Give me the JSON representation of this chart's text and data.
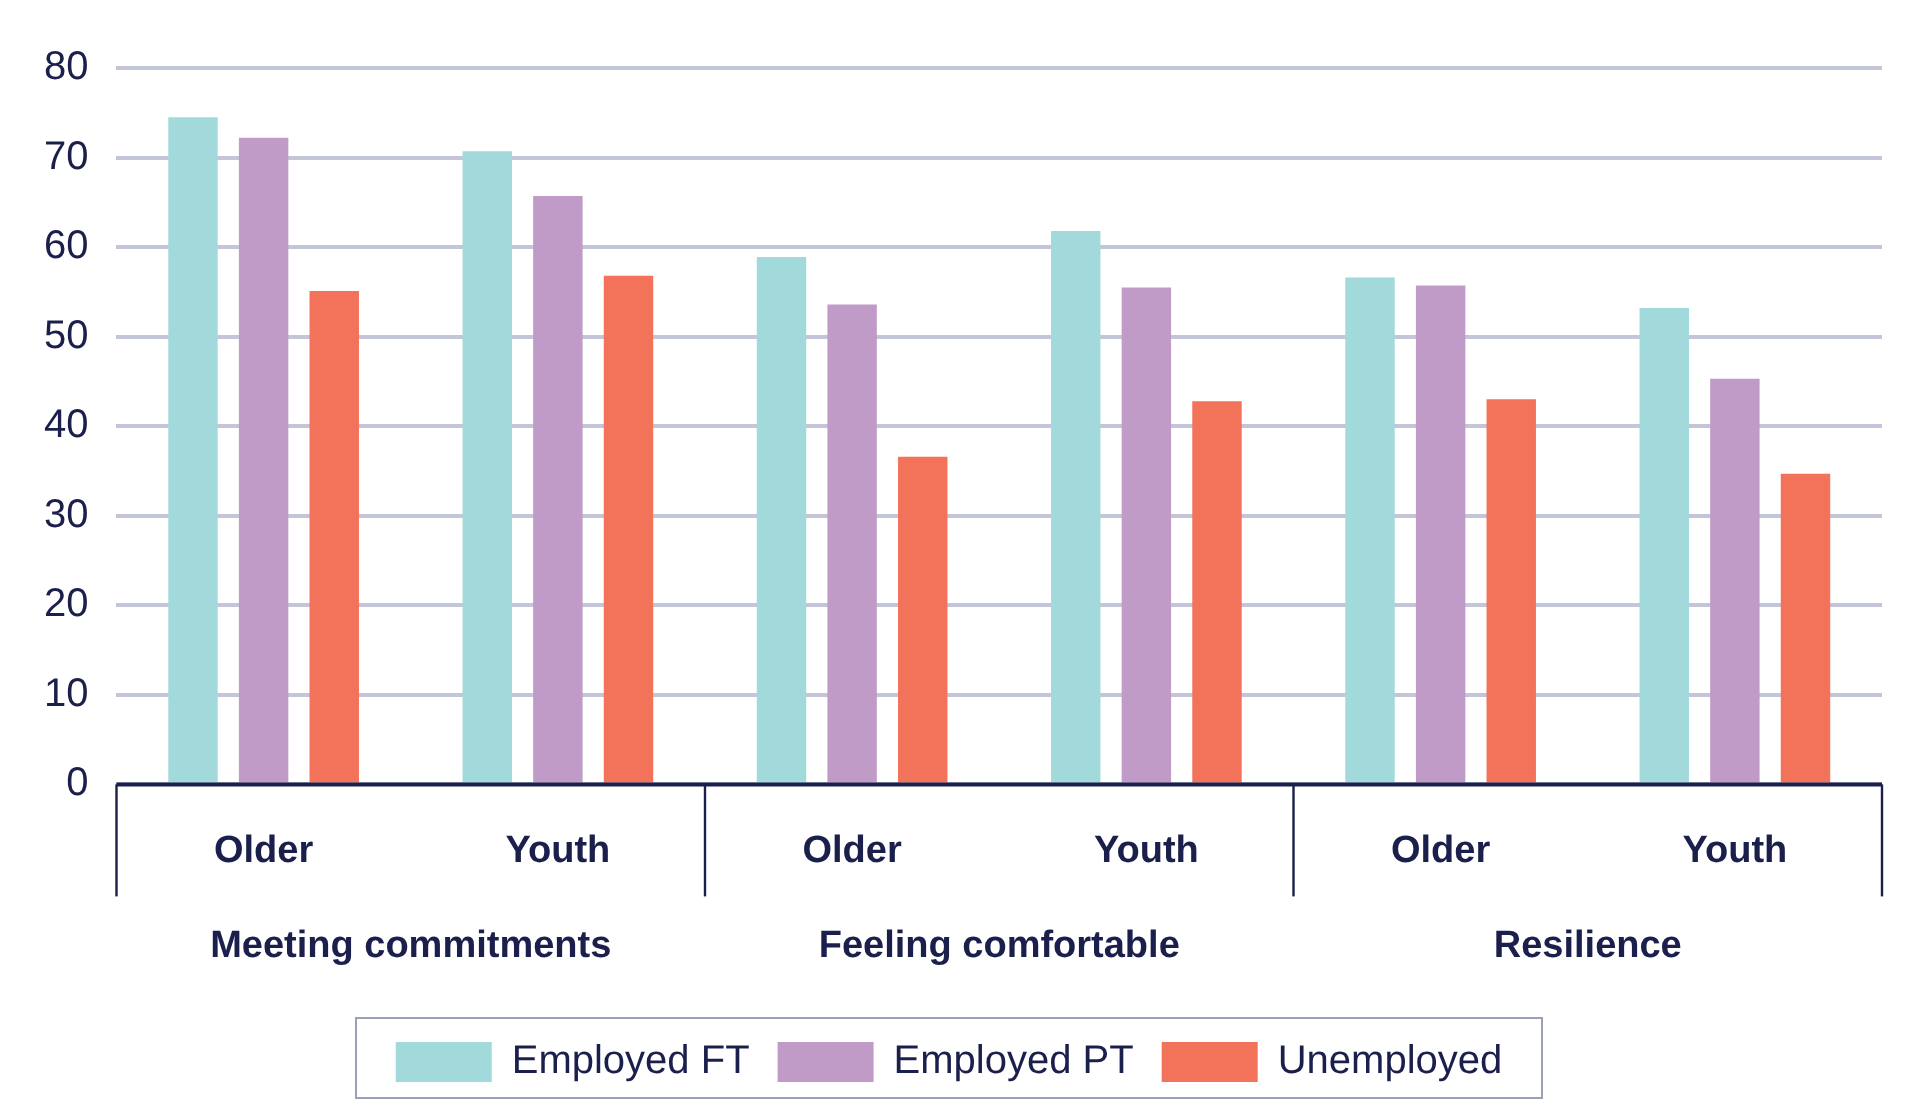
{
  "chart_data": {
    "type": "bar",
    "categories": [
      "Older",
      "Youth",
      "Older",
      "Youth",
      "Older",
      "Youth"
    ],
    "annotations": [
      "Meeting commitments",
      "Feeling comfortable",
      "Resilience"
    ],
    "series": [
      {
        "name": "Employed FT",
        "color": "#a2dadb",
        "values": [
          74.5,
          70.7,
          58.9,
          61.8,
          56.6,
          53.2
        ]
      },
      {
        "name": "Employed PT",
        "color": "#c09bc7",
        "values": [
          72.2,
          65.7,
          53.6,
          55.5,
          55.7,
          45.3
        ]
      },
      {
        "name": "Unemployed",
        "color": "#f3725a",
        "values": [
          55.1,
          56.8,
          36.6,
          42.8,
          43.0,
          34.7
        ]
      }
    ],
    "ylim": [
      0,
      80
    ],
    "yticks": [
      0,
      10,
      20,
      30,
      40,
      50,
      60,
      70,
      80
    ],
    "grid": "y",
    "legend": "bottom"
  }
}
